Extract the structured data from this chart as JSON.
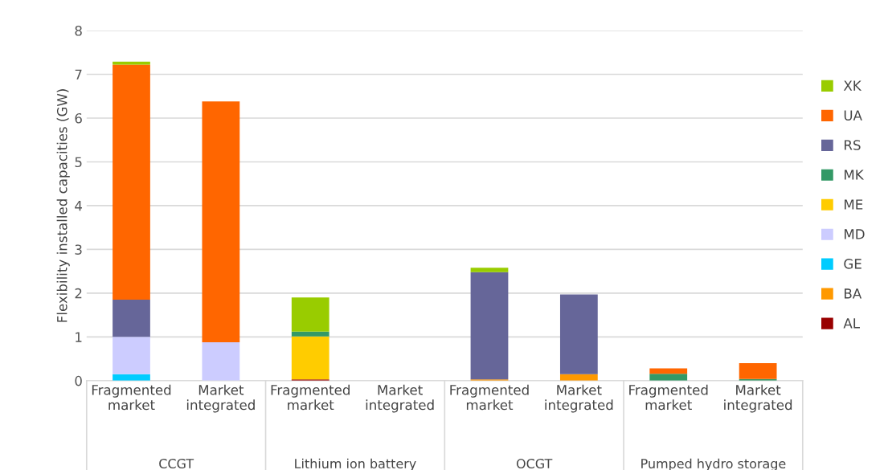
{
  "chart_data": {
    "type": "bar",
    "stacked": true,
    "ylabel": "Flexibility installed capacities (GW)",
    "categories": [
      "Fragmented market",
      "Market integrated",
      "Fragmented market",
      "Market integrated",
      "Fragmented market",
      "Market integrated",
      "Fragmented market",
      "Market integrated"
    ],
    "annotations": [
      "CCGT",
      "Lithium ion battery",
      "OCGT",
      "Pumped hydro storage"
    ],
    "series": [
      {
        "name": "AL",
        "color": "#990000",
        "values": [
          null,
          null,
          0.03,
          null,
          null,
          null,
          null,
          null
        ]
      },
      {
        "name": "BA",
        "color": "#ff9900",
        "values": [
          null,
          null,
          null,
          null,
          0.03,
          0.15,
          null,
          null
        ]
      },
      {
        "name": "GE",
        "color": "#00ccff",
        "values": [
          0.15,
          null,
          null,
          null,
          null,
          null,
          null,
          null
        ]
      },
      {
        "name": "MD",
        "color": "#ccccff",
        "values": [
          0.85,
          0.88,
          null,
          null,
          null,
          null,
          null,
          null
        ]
      },
      {
        "name": "ME",
        "color": "#ffcc00",
        "values": [
          null,
          null,
          0.98,
          null,
          null,
          null,
          null,
          null
        ]
      },
      {
        "name": "MK",
        "color": "#339966",
        "values": [
          null,
          null,
          0.11,
          null,
          null,
          null,
          0.16,
          0.04
        ]
      },
      {
        "name": "RS",
        "color": "#666699",
        "values": [
          0.85,
          null,
          null,
          null,
          2.45,
          1.82,
          null,
          null
        ]
      },
      {
        "name": "UA",
        "color": "#ff6600",
        "values": [
          5.37,
          5.5,
          null,
          null,
          null,
          null,
          0.12,
          0.36
        ]
      },
      {
        "name": "XK",
        "color": "#99cc00",
        "values": [
          0.07,
          null,
          0.78,
          null,
          0.1,
          null,
          null,
          null
        ]
      }
    ],
    "ylim": [
      0,
      8
    ],
    "yticks": [
      0,
      1,
      2,
      3,
      4,
      5,
      6,
      7,
      8
    ],
    "grid": "y",
    "legend": "right"
  }
}
